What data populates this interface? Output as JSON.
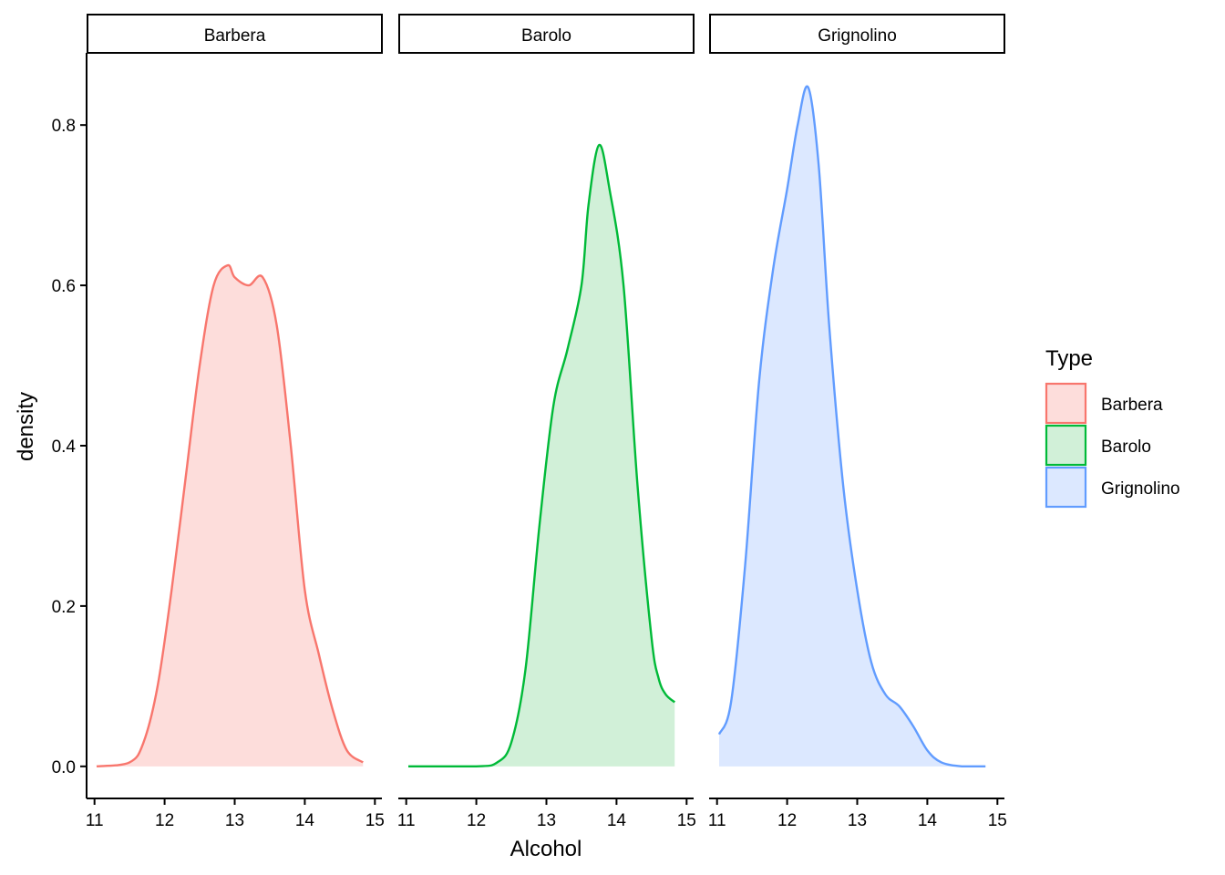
{
  "chart_data": {
    "type": "area",
    "subtype": "faceted density",
    "xlabel": "Alcohol",
    "ylabel": "density",
    "xlim": [
      10.9,
      15.1
    ],
    "ylim": [
      -0.04,
      0.89
    ],
    "x_ticks": [
      "11",
      "12",
      "13",
      "14",
      "15"
    ],
    "y_ticks": [
      "0.0",
      "0.2",
      "0.4",
      "0.6",
      "0.8"
    ],
    "grid": false,
    "legend": {
      "title": "Type",
      "position": "right",
      "items": [
        "Barbera",
        "Barolo",
        "Grignolino"
      ]
    },
    "facets": [
      "Barbera",
      "Barolo",
      "Grignolino"
    ],
    "series": [
      {
        "name": "Barbera",
        "color": "#F8766D",
        "fill": "#FDDDDB",
        "x": [
          11.03,
          11.5,
          11.7,
          11.9,
          12.1,
          12.3,
          12.5,
          12.7,
          12.9,
          13.0,
          13.2,
          13.4,
          13.6,
          13.8,
          14.0,
          14.2,
          14.4,
          14.6,
          14.83
        ],
        "y": [
          0.0,
          0.005,
          0.03,
          0.1,
          0.22,
          0.36,
          0.5,
          0.6,
          0.625,
          0.61,
          0.6,
          0.61,
          0.55,
          0.4,
          0.22,
          0.14,
          0.07,
          0.02,
          0.005
        ]
      },
      {
        "name": "Barolo",
        "color": "#00BA38",
        "fill": "#D1F0D8",
        "x": [
          11.03,
          12.0,
          12.3,
          12.5,
          12.7,
          12.9,
          13.1,
          13.3,
          13.5,
          13.6,
          13.75,
          13.9,
          14.1,
          14.3,
          14.5,
          14.6,
          14.7,
          14.83
        ],
        "y": [
          0.0,
          0.0,
          0.005,
          0.03,
          0.12,
          0.3,
          0.45,
          0.52,
          0.6,
          0.7,
          0.775,
          0.72,
          0.6,
          0.35,
          0.16,
          0.11,
          0.09,
          0.08
        ]
      },
      {
        "name": "Grignolino",
        "color": "#619CFF",
        "fill": "#DCE8FF",
        "x": [
          11.03,
          11.2,
          11.4,
          11.6,
          11.8,
          12.0,
          12.15,
          12.3,
          12.45,
          12.6,
          12.8,
          13.0,
          13.2,
          13.4,
          13.6,
          13.8,
          14.0,
          14.2,
          14.5,
          14.83
        ],
        "y": [
          0.04,
          0.08,
          0.25,
          0.48,
          0.62,
          0.72,
          0.8,
          0.847,
          0.75,
          0.55,
          0.35,
          0.22,
          0.13,
          0.09,
          0.075,
          0.05,
          0.02,
          0.005,
          0.0,
          0.0
        ]
      }
    ]
  }
}
